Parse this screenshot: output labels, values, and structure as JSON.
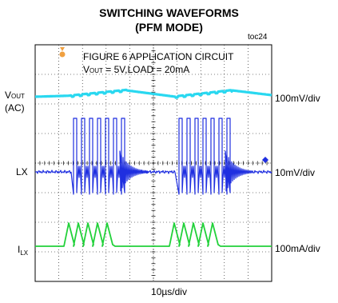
{
  "chart_data": {
    "type": "line",
    "title": "SWITCHING WAVEFORMS",
    "subtitle": "(PFM MODE)",
    "figure_id": "toc24",
    "annotation": {
      "line1": "FIGURE 6 APPLICATION CIRCUIT",
      "vout_main": "V",
      "vout_sub": "OUT",
      "vout_rest": " = 5V,LOAD =  20mA"
    },
    "xlabel": "10µs/div",
    "grid": true,
    "x_divisions": 10,
    "y_divisions": 8,
    "series": [
      {
        "id": "vout",
        "name_main": "V",
        "name_sub": "OUT",
        "name_extra": "(AC)",
        "scale": "100mV/div",
        "color": "#29d8f0"
      },
      {
        "id": "lx",
        "name_main": "LX",
        "name_sub": "",
        "name_extra": "",
        "scale": "10mV/div",
        "color": "#1f2fe0"
      },
      {
        "id": "ilx",
        "name_main": "I",
        "name_sub": "LX",
        "name_extra": "",
        "scale": "100mA/div",
        "color": "#22d13a"
      }
    ],
    "colors": {
      "trigger_marker": "#f0a040",
      "level_marker": "#1f2fe0"
    }
  }
}
